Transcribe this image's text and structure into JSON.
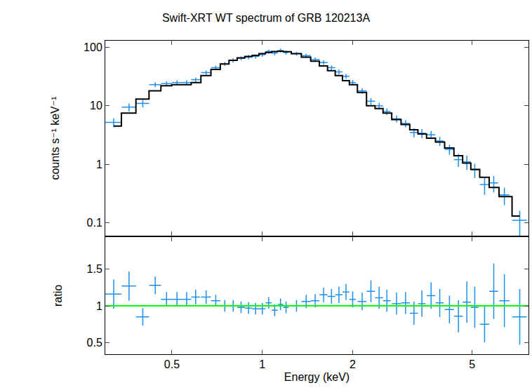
{
  "chart_data": [
    {
      "type": "scatter",
      "title": "Swift-XRT WT spectrum of GRB 120213A",
      "y_label": "counts s⁻¹ keV⁻¹",
      "log": true,
      "tick_labels": "y",
      "xlim": [
        0.3,
        7.7
      ],
      "xticks": [
        0.5,
        1,
        2,
        5
      ],
      "ylim": [
        0.06,
        130
      ],
      "yticks": [
        0.1,
        1,
        10,
        100
      ],
      "series": [
        {
          "type": "scatter",
          "marker": "none",
          "color": "#1e8fef",
          "x": [
            0.32,
            0.36,
            0.4,
            0.44,
            0.48,
            0.52,
            0.56,
            0.6,
            0.65,
            0.7,
            0.75,
            0.8,
            0.85,
            0.9,
            0.95,
            1.0,
            1.05,
            1.1,
            1.15,
            1.2,
            1.3,
            1.4,
            1.5,
            1.6,
            1.7,
            1.8,
            1.9,
            2.0,
            2.15,
            2.3,
            2.45,
            2.6,
            2.8,
            3.0,
            3.2,
            3.4,
            3.65,
            3.9,
            4.2,
            4.5,
            4.8,
            5.1,
            5.5,
            5.9,
            6.4,
            7.2
          ],
          "x_errors": [
            0.02,
            0.02,
            0.02,
            0.02,
            0.02,
            0.02,
            0.02,
            0.02,
            0.025,
            0.025,
            0.025,
            0.025,
            0.025,
            0.025,
            0.025,
            0.025,
            0.025,
            0.025,
            0.025,
            0.025,
            0.05,
            0.05,
            0.05,
            0.05,
            0.05,
            0.05,
            0.05,
            0.05,
            0.075,
            0.075,
            0.075,
            0.075,
            0.1,
            0.1,
            0.1,
            0.1,
            0.12,
            0.12,
            0.15,
            0.15,
            0.15,
            0.15,
            0.2,
            0.2,
            0.25,
            0.4
          ],
          "values": [
            5.2,
            9.5,
            11,
            23,
            24,
            25,
            25,
            28,
            37,
            45,
            52,
            60,
            65,
            68,
            70,
            75,
            85,
            80,
            88,
            82,
            78,
            72,
            62,
            55,
            45,
            38,
            32,
            25,
            18,
            12,
            10,
            8,
            6,
            5,
            3.5,
            3.4,
            3.2,
            2.5,
            1.8,
            1.2,
            1.1,
            0.8,
            0.45,
            0.48,
            0.3,
            0.11
          ],
          "y_errors": [
            0.9,
            1.5,
            1.6,
            2.2,
            2.2,
            2.3,
            2.3,
            2.5,
            3,
            3.5,
            4,
            5,
            5,
            6,
            6,
            6,
            7,
            7,
            7,
            7,
            6,
            6,
            5,
            5,
            4,
            3.5,
            3,
            2.5,
            2,
            1.5,
            1.3,
            1,
            0.8,
            0.7,
            0.6,
            0.6,
            0.5,
            0.45,
            0.35,
            0.3,
            0.3,
            0.22,
            0.15,
            0.15,
            0.1,
            0.05
          ]
        },
        {
          "type": "step",
          "color": "#000000",
          "x": [
            0.32,
            0.36,
            0.4,
            0.44,
            0.48,
            0.52,
            0.56,
            0.6,
            0.65,
            0.7,
            0.75,
            0.8,
            0.85,
            0.9,
            0.95,
            1.0,
            1.05,
            1.1,
            1.15,
            1.2,
            1.3,
            1.4,
            1.5,
            1.6,
            1.7,
            1.8,
            1.9,
            2.0,
            2.15,
            2.3,
            2.45,
            2.6,
            2.8,
            3.0,
            3.2,
            3.4,
            3.65,
            3.9,
            4.2,
            4.5,
            4.8,
            5.1,
            5.5,
            5.9,
            6.4,
            7.2
          ],
          "values": [
            4.5,
            7.5,
            13,
            18,
            22,
            23,
            23,
            25,
            33,
            42,
            52,
            60,
            66,
            70,
            73,
            78,
            82,
            85,
            86,
            84,
            78,
            68,
            58,
            48,
            40,
            33,
            27,
            23,
            17,
            10,
            9,
            7.5,
            5.8,
            4.8,
            3.9,
            3.3,
            2.8,
            2.4,
            1.9,
            1.4,
            1.05,
            0.82,
            0.6,
            0.4,
            0.28,
            0.13
          ]
        }
      ]
    },
    {
      "type": "scatter",
      "x_label": "Energy (keV)",
      "y_label": "ratio",
      "log": "x",
      "xlim": [
        0.3,
        7.7
      ],
      "xticks": [
        0.5,
        1,
        2,
        5
      ],
      "ylim": [
        0.34,
        1.94
      ],
      "yticks": [
        0.5,
        1,
        1.5
      ],
      "series": [
        {
          "type": "scatter",
          "marker": "none",
          "color": "#1e8fef",
          "x": [
            0.32,
            0.36,
            0.4,
            0.44,
            0.48,
            0.52,
            0.56,
            0.6,
            0.65,
            0.7,
            0.75,
            0.8,
            0.85,
            0.9,
            0.95,
            1.0,
            1.05,
            1.1,
            1.15,
            1.2,
            1.3,
            1.4,
            1.5,
            1.6,
            1.7,
            1.8,
            1.9,
            2.0,
            2.15,
            2.3,
            2.45,
            2.6,
            2.8,
            3.0,
            3.2,
            3.4,
            3.65,
            3.9,
            4.2,
            4.5,
            4.8,
            5.1,
            5.5,
            5.9,
            6.4,
            7.2
          ],
          "x_errors": [
            0.02,
            0.02,
            0.02,
            0.02,
            0.02,
            0.02,
            0.02,
            0.02,
            0.025,
            0.025,
            0.025,
            0.025,
            0.025,
            0.025,
            0.025,
            0.025,
            0.025,
            0.025,
            0.025,
            0.025,
            0.05,
            0.05,
            0.05,
            0.05,
            0.05,
            0.05,
            0.05,
            0.05,
            0.075,
            0.075,
            0.075,
            0.075,
            0.1,
            0.1,
            0.1,
            0.1,
            0.12,
            0.12,
            0.15,
            0.15,
            0.15,
            0.15,
            0.2,
            0.2,
            0.25,
            0.4
          ],
          "values": [
            1.16,
            1.27,
            0.85,
            1.28,
            1.09,
            1.09,
            1.09,
            1.12,
            1.12,
            1.07,
            1.0,
            1.0,
            0.98,
            0.97,
            0.96,
            0.96,
            1.04,
            0.94,
            1.02,
            0.98,
            1.0,
            1.06,
            1.07,
            1.15,
            1.13,
            1.15,
            1.19,
            1.09,
            1.06,
            1.2,
            1.11,
            1.07,
            1.03,
            1.04,
            0.9,
            1.03,
            1.14,
            1.04,
            0.95,
            0.86,
            1.05,
            0.98,
            0.75,
            1.2,
            1.07,
            0.85
          ],
          "y_errors": [
            0.2,
            0.2,
            0.12,
            0.12,
            0.1,
            0.1,
            0.1,
            0.1,
            0.09,
            0.08,
            0.08,
            0.08,
            0.08,
            0.08,
            0.08,
            0.08,
            0.08,
            0.08,
            0.08,
            0.08,
            0.08,
            0.09,
            0.09,
            0.1,
            0.1,
            0.11,
            0.11,
            0.11,
            0.12,
            0.15,
            0.15,
            0.15,
            0.15,
            0.15,
            0.16,
            0.18,
            0.18,
            0.19,
            0.19,
            0.22,
            0.28,
            0.28,
            0.25,
            0.38,
            0.36,
            0.38
          ]
        },
        {
          "type": "line",
          "color": "#00ff00",
          "x": [
            0.3,
            7.7
          ],
          "values": [
            1,
            1
          ]
        }
      ]
    }
  ]
}
